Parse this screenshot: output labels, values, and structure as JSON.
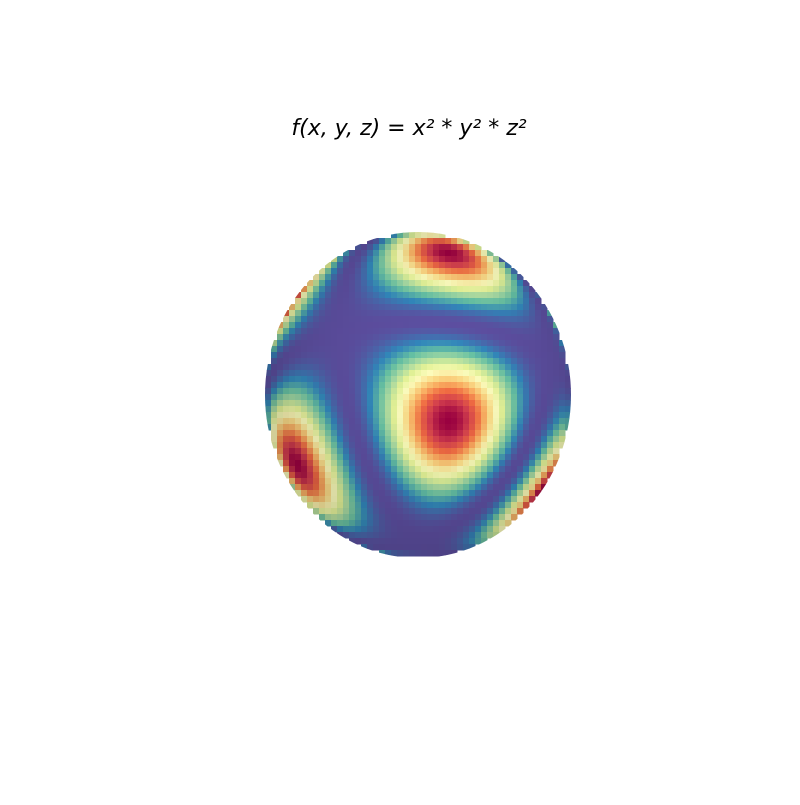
{
  "chart_data": {
    "type": "surface",
    "title": "f(x, y, z) = x² * y² * z²",
    "colormap": [
      "#5e4fa2",
      "#3288bd",
      "#66c2a5",
      "#abdda4",
      "#e6f598",
      "#ffffbf",
      "#fee08b",
      "#fdae61",
      "#f46d43",
      "#d53e4f",
      "#9e0142"
    ]
  }
}
